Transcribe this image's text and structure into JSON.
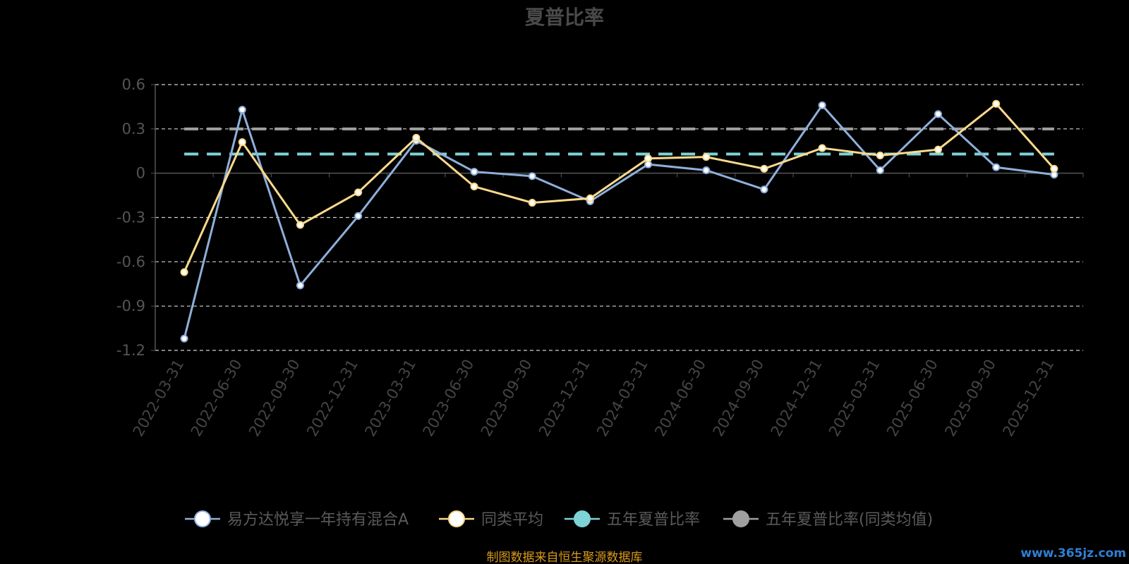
{
  "chart_data": {
    "type": "line",
    "title": "夏普比率",
    "categories": [
      "2022-03-31",
      "2022-06-30",
      "2022-09-30",
      "2022-12-31",
      "2023-03-31",
      "2023-06-30",
      "2023-09-30",
      "2023-12-31",
      "2024-03-31",
      "2024-06-30",
      "2024-09-30",
      "2024-12-31",
      "2025-03-31",
      "2025-06-30",
      "2025-09-30",
      "2025-12-31"
    ],
    "y_ticks": [
      "0.6",
      "0.3",
      "0",
      "-0.3",
      "-0.6",
      "-0.9",
      "-1.2"
    ],
    "ylim": [
      -1.2,
      0.6
    ],
    "grid": true,
    "legend_position": "bottom",
    "series": [
      {
        "name": "易方达悦享一年持有混合A",
        "color": "#8eafdb",
        "values": [
          -1.12,
          0.43,
          -0.76,
          -0.29,
          0.22,
          0.01,
          -0.02,
          -0.19,
          0.06,
          0.02,
          -0.11,
          0.46,
          0.02,
          0.4,
          0.04,
          -0.01
        ]
      },
      {
        "name": "同类平均",
        "color": "#fbd98c",
        "values": [
          -0.67,
          0.21,
          -0.35,
          -0.13,
          0.24,
          -0.09,
          -0.2,
          -0.17,
          0.1,
          0.11,
          0.03,
          0.17,
          0.12,
          0.16,
          0.47,
          0.03
        ]
      },
      {
        "name": "五年夏普比率",
        "color": "#7ed3d6",
        "value": 0.13
      },
      {
        "name": "五年夏普比率(同类均值)",
        "color": "#a0a0a0",
        "value": 0.3
      }
    ]
  },
  "footer": {
    "source": "制图数据来自恒生聚源数据库",
    "watermark": "www.365jz.com"
  }
}
